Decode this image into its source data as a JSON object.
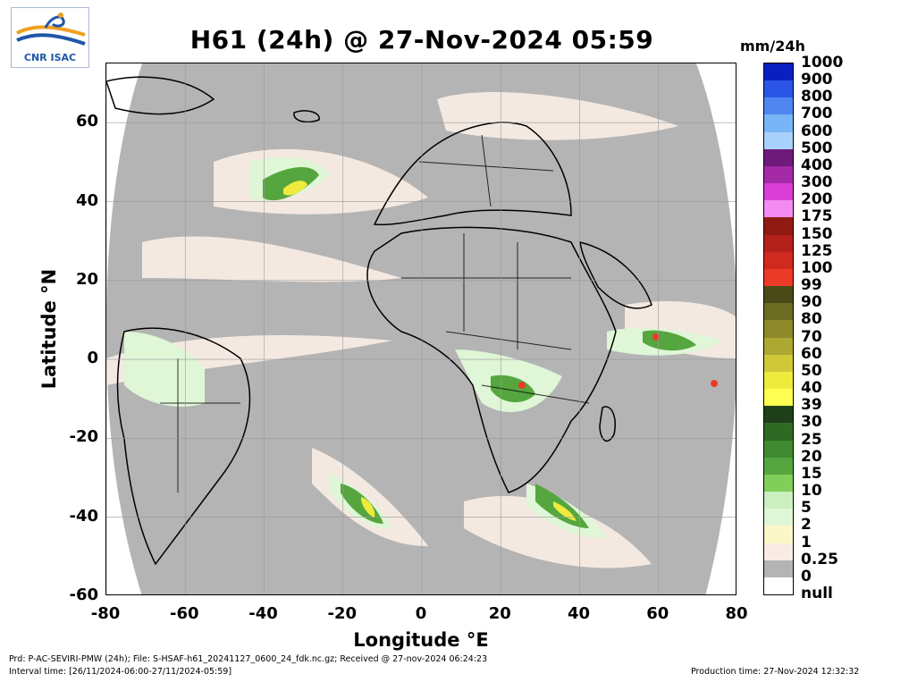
{
  "header": {
    "title": "H61 (24h) @ 27-Nov-2024 05:59",
    "unit": "mm/24h",
    "logo_text": "CNR ISAC"
  },
  "axes": {
    "xlabel": "Longitude °E",
    "ylabel": "Latitude °N",
    "xticks": [
      "-80",
      "-60",
      "-40",
      "-20",
      "0",
      "20",
      "40",
      "60",
      "80"
    ],
    "yticks": [
      "60",
      "40",
      "20",
      "0",
      "-20",
      "-40",
      "-60"
    ],
    "xlim": [
      -80,
      80
    ],
    "ylim": [
      -60,
      75
    ]
  },
  "legend": {
    "labels": [
      "1000",
      "900",
      "800",
      "700",
      "600",
      "500",
      "400",
      "300",
      "200",
      "175",
      "150",
      "125",
      "100",
      "99",
      "90",
      "80",
      "70",
      "60",
      "50",
      "40",
      "39",
      "30",
      "25",
      "20",
      "15",
      "10",
      "5",
      "2",
      "1",
      "0.25",
      "0",
      "null"
    ],
    "colors": [
      "#0a1fc0",
      "#2b55e6",
      "#4f86f0",
      "#78b5f7",
      "#a8d2fb",
      "#6e1a7a",
      "#a52aa8",
      "#d93ed6",
      "#f28cf0",
      "#8e1a12",
      "#b4201a",
      "#cf2a1e",
      "#ec3a28",
      "#4a4a18",
      "#6b6b22",
      "#8c8a2a",
      "#ada832",
      "#cfc93a",
      "#eeeb3c",
      "#fdfd52",
      "#1f3f1a",
      "#2e6a24",
      "#3f8a30",
      "#55a63e",
      "#7fcf5a",
      "#cbefbf",
      "#dff6d7",
      "#fbf7c8",
      "#f8ece4",
      "#b4b4b4",
      "#ffffff"
    ]
  },
  "footer": {
    "line1": "Prd: P-AC-SEVIRI-PMW (24h); File: S-HSAF-h61_20241127_0600_24_fdk.nc.gz; Received @ 27-nov-2024 06:24:23",
    "line2": "Interval time: [26/11/2024-06:00-27/11/2024-05:59]",
    "production": "Production time: 27-Nov-2024 12:32:32"
  }
}
